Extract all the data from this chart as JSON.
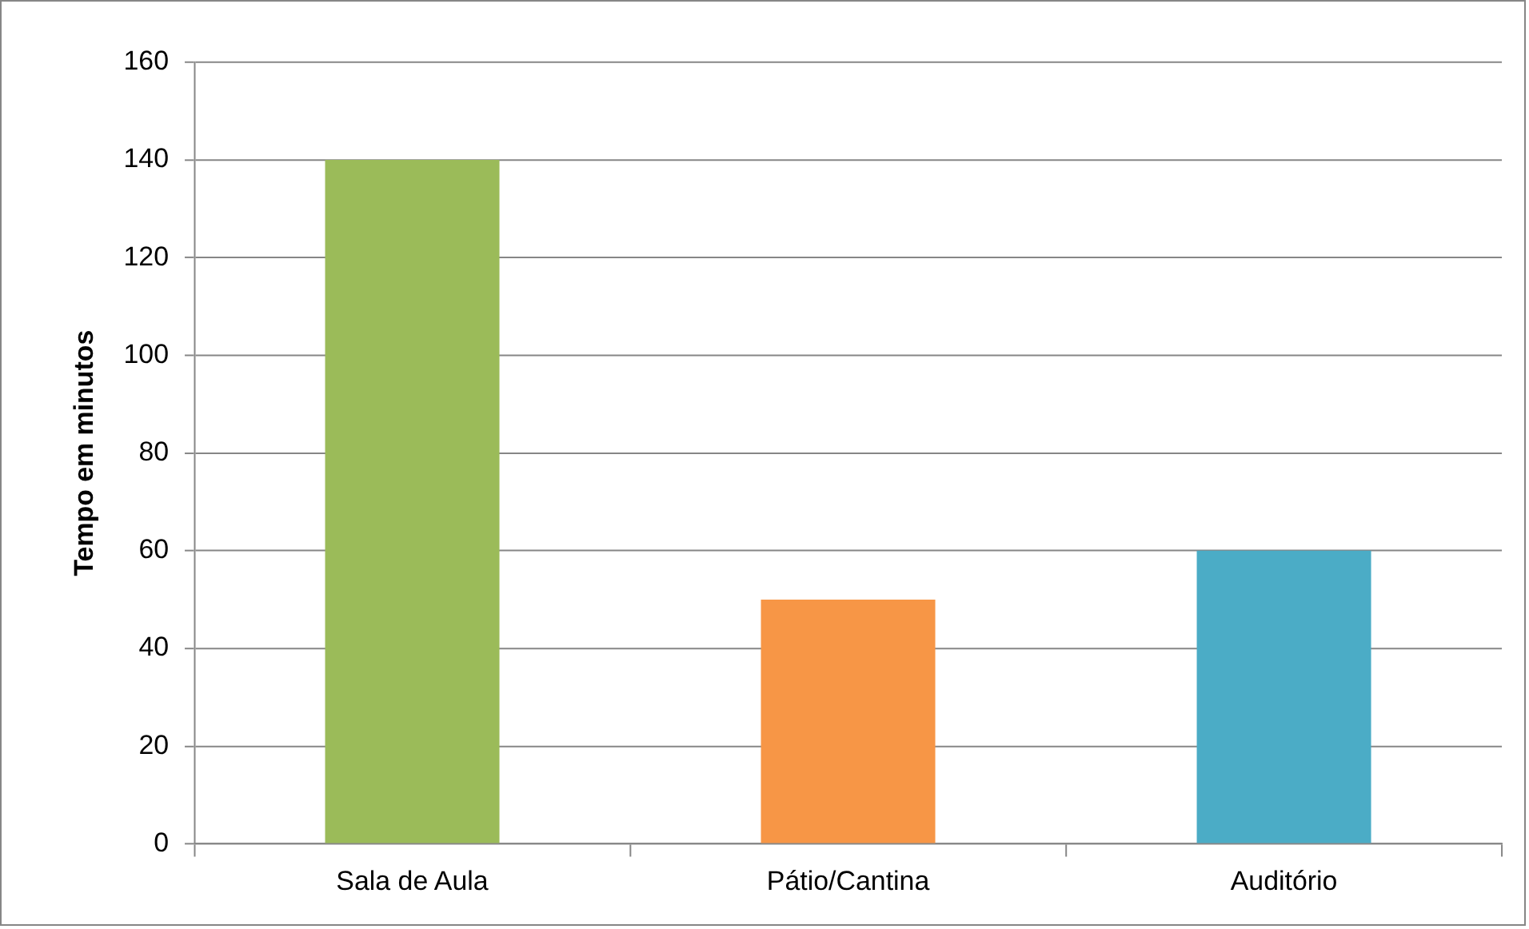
{
  "chart_data": {
    "type": "bar",
    "ylabel": "Tempo em minutos",
    "categories": [
      "Sala de Aula",
      "Pátio/Cantina",
      "Auditório"
    ],
    "values": [
      140,
      50,
      60
    ],
    "colors": [
      "#9bbb59",
      "#f79646",
      "#4bacc6"
    ],
    "ylim": [
      0,
      160
    ],
    "yticks": [
      0,
      20,
      40,
      60,
      80,
      100,
      120,
      140,
      160
    ],
    "grid": "y",
    "legend": false
  }
}
